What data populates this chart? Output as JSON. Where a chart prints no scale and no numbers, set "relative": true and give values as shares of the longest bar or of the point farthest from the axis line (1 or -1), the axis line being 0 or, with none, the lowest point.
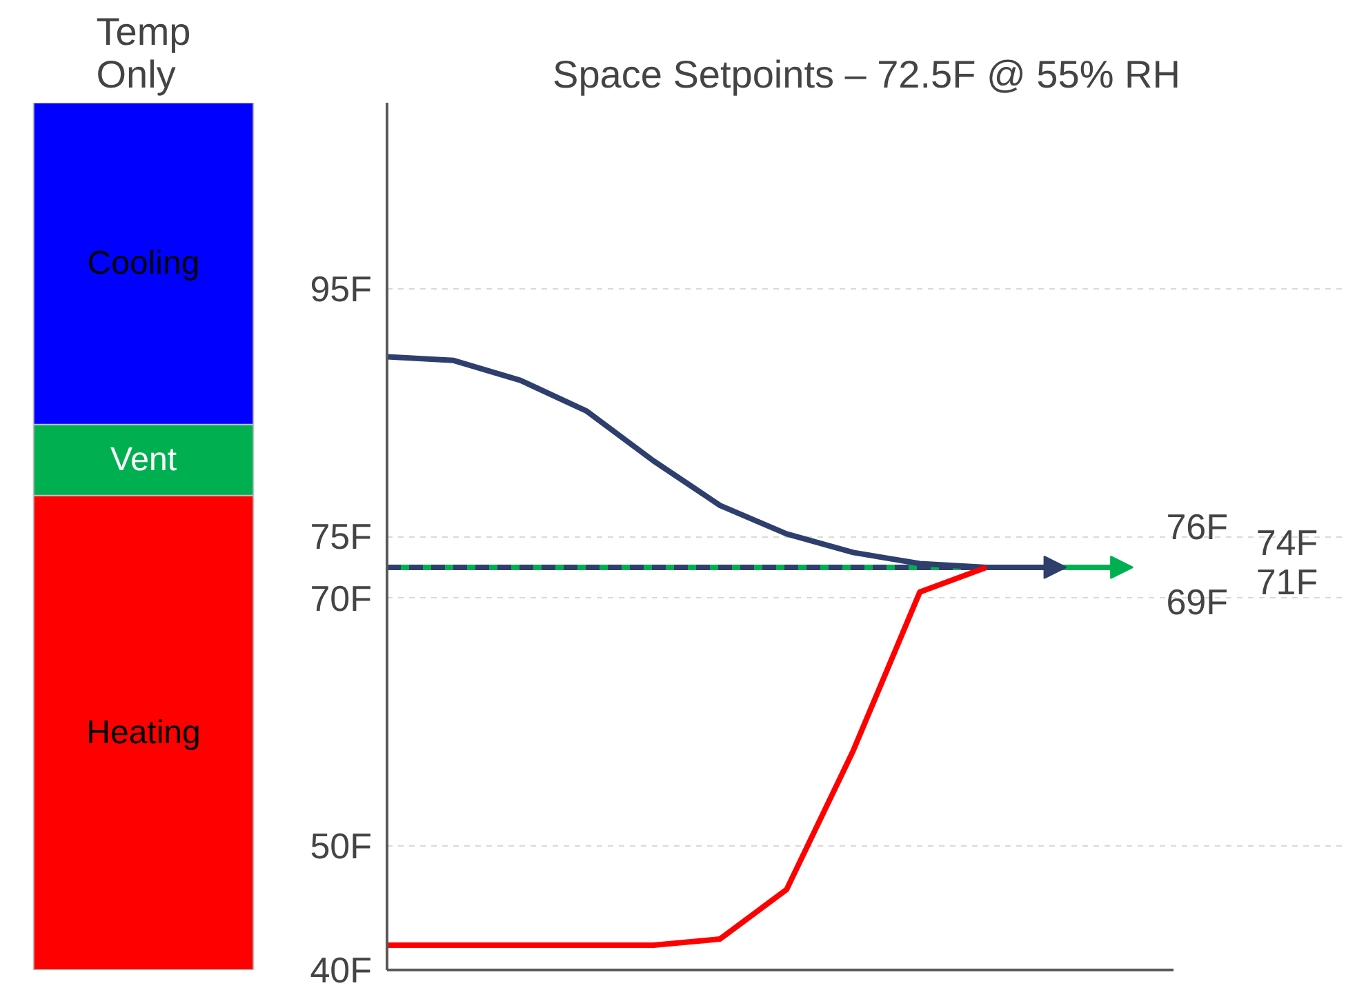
{
  "chart_data": [
    {
      "type": "bar",
      "title": "Temp Only",
      "categories": [
        null
      ],
      "stacked": true,
      "relative": true,
      "series": [
        {
          "name": "Heating",
          "color": "#ff0000",
          "values": [
            0.547
          ]
        },
        {
          "name": "Vent",
          "color": "#00b050",
          "values": [
            0.082
          ]
        },
        {
          "name": "Cooling",
          "color": "#0000ff",
          "values": [
            0.371
          ]
        }
      ]
    },
    {
      "type": "line",
      "title": "Space Setpoints – 72.5F @ 55% RH",
      "categories": [
        null,
        null,
        null,
        null,
        null,
        null,
        null,
        null,
        null,
        null,
        null,
        null
      ],
      "ylim": [
        40,
        110
      ],
      "yticks": [
        {
          "value": 40,
          "label": "40F"
        },
        {
          "value": 50,
          "label": "50F"
        },
        {
          "value": 70,
          "label": "70F"
        },
        {
          "value": 75,
          "label": "75F"
        },
        {
          "value": 95,
          "label": "95F"
        }
      ],
      "grid": "y",
      "tick_labels": "y",
      "annotations": [
        "76F",
        "74F",
        "69F",
        "71F"
      ],
      "series": [
        {
          "color": "#00b050",
          "values": [
            72.5,
            72.5,
            72.5,
            72.5,
            72.5,
            72.5,
            72.5,
            72.5,
            72.5,
            72.5,
            72.5,
            72.5
          ]
        },
        {
          "color": "#2e3f6e",
          "line_style": "dashed",
          "values": [
            72.5,
            72.5,
            72.5,
            72.5,
            72.5,
            72.5,
            72.5,
            72.5,
            72.5,
            72.5,
            72.5,
            null
          ]
        },
        {
          "color": "#2e3f6e",
          "values": [
            89.5,
            89.2,
            87.6,
            85.1,
            81.1,
            77.5,
            75.2,
            73.7,
            72.8,
            72.5,
            72.5,
            null
          ]
        },
        {
          "color": "#ff0000",
          "values": [
            42,
            42,
            42,
            42,
            42,
            42.5,
            46.5,
            57.7,
            70.5,
            72.5,
            null,
            null
          ]
        }
      ]
    }
  ]
}
